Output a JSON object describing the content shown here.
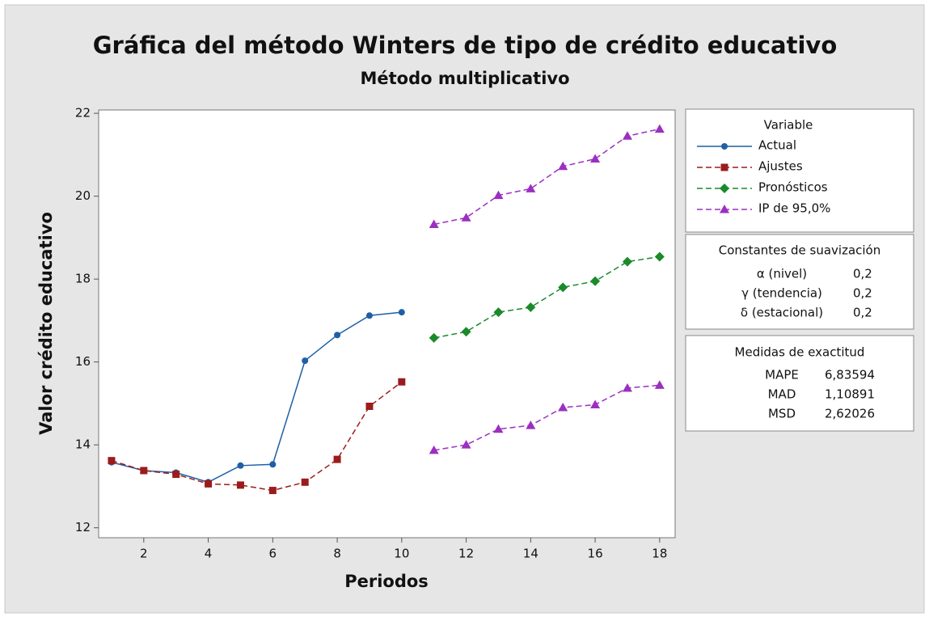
{
  "chart_data": {
    "type": "line",
    "title": "Gráfica del método Winters de tipo de crédito educativo",
    "subtitle": "Método multiplicativo",
    "x_label": "Periodos",
    "y_label": "Valor crédito educativo",
    "xlim": [
      0.6,
      18.48
    ],
    "ylim": [
      11.76,
      22.08
    ],
    "xticks": [
      2,
      4,
      6,
      8,
      10,
      12,
      14,
      16,
      18
    ],
    "yticks": [
      12,
      14,
      16,
      18,
      20,
      22
    ],
    "legend_title": "Variable",
    "series": [
      {
        "name": "Actual",
        "color": "#1f5fa6",
        "marker": "circle",
        "dashed": false,
        "x": [
          1,
          2,
          3,
          4,
          5,
          6,
          7,
          8,
          9,
          10
        ],
        "values": [
          13.58,
          13.38,
          13.33,
          13.1,
          13.5,
          13.53,
          16.03,
          16.65,
          17.12,
          17.2
        ]
      },
      {
        "name": "Ajustes",
        "color": "#9b1c1c",
        "marker": "square",
        "dashed": true,
        "x": [
          1,
          2,
          3,
          4,
          5,
          6,
          7,
          8,
          9,
          10
        ],
        "values": [
          13.62,
          13.38,
          13.29,
          13.06,
          13.03,
          12.9,
          13.1,
          13.65,
          14.93,
          15.52
        ]
      },
      {
        "name": "Pronósticos",
        "color": "#1a8a2a",
        "marker": "diamond",
        "dashed": true,
        "x": [
          11,
          12,
          13,
          14,
          15,
          16,
          17,
          18
        ],
        "values": [
          16.58,
          16.73,
          17.2,
          17.32,
          17.8,
          17.95,
          18.42,
          18.54
        ]
      },
      {
        "name": "IP de 95,0%",
        "color": "#9b30c0",
        "marker": "triangle",
        "dashed": true,
        "x": [
          11,
          12,
          13,
          14,
          15,
          16,
          17,
          18
        ],
        "values": [
          19.32,
          19.48,
          20.02,
          20.18,
          20.72,
          20.9,
          21.45,
          21.62
        ],
        "lower": [
          13.87,
          14.0,
          14.38,
          14.47,
          14.9,
          14.97,
          15.37,
          15.44
        ]
      }
    ],
    "smoothing": {
      "title": "Constantes de suavización",
      "rows": [
        [
          "α (nivel)",
          "0,2"
        ],
        [
          "γ (tendencia)",
          "0,2"
        ],
        [
          "δ (estacional)",
          "0,2"
        ]
      ]
    },
    "accuracy": {
      "title": "Medidas de exactitud",
      "rows": [
        [
          "MAPE",
          "6,83594"
        ],
        [
          "MAD",
          "1,10891"
        ],
        [
          "MSD",
          "2,62026"
        ]
      ]
    }
  }
}
